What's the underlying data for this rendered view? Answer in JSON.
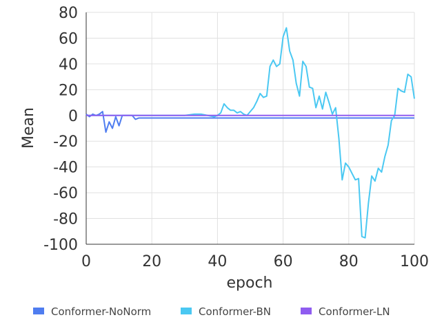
{
  "chart_data": {
    "type": "line",
    "title": "",
    "xlabel": "epoch",
    "ylabel": "Mean",
    "xlim": [
      0,
      100
    ],
    "ylim": [
      -100,
      80
    ],
    "xticks": [
      0,
      20,
      40,
      60,
      80,
      100
    ],
    "yticks": [
      80,
      60,
      40,
      20,
      0,
      -20,
      -40,
      -60,
      -80,
      -100
    ],
    "grid": true,
    "legend_position": "bottom",
    "series": [
      {
        "name": "Conformer-NoNorm",
        "color": "#4f7df0",
        "x": [
          0,
          1,
          2,
          3,
          4,
          5,
          6,
          7,
          8,
          9,
          10,
          11,
          12,
          13,
          14,
          15,
          16,
          17,
          18,
          19,
          20,
          30,
          40,
          50,
          60,
          70,
          80,
          90,
          100
        ],
        "y": [
          1,
          -1,
          1,
          0,
          1,
          3,
          -13,
          -5,
          -10,
          -1,
          -8,
          0,
          0,
          0,
          0,
          -3,
          -2,
          -2,
          -2,
          -2,
          -2,
          -2,
          -2,
          -2,
          -2,
          -2,
          -2,
          -2,
          -2
        ]
      },
      {
        "name": "Conformer-BN",
        "color": "#4ac8f2",
        "x": [
          0,
          5,
          10,
          15,
          20,
          25,
          30,
          33,
          35,
          37,
          39,
          40,
          41,
          42,
          43,
          44,
          45,
          46,
          47,
          48,
          49,
          50,
          51,
          52,
          53,
          54,
          55,
          56,
          57,
          58,
          59,
          60,
          61,
          62,
          63,
          64,
          65,
          66,
          67,
          68,
          69,
          70,
          71,
          72,
          73,
          74,
          75,
          76,
          77,
          78,
          79,
          80,
          81,
          82,
          83,
          84,
          85,
          86,
          87,
          88,
          89,
          90,
          91,
          92,
          93,
          94,
          95,
          96,
          97,
          98,
          99,
          100
        ],
        "y": [
          0,
          0,
          0,
          0,
          0,
          0,
          0,
          1,
          1,
          0,
          -1,
          0,
          2,
          9,
          6,
          4,
          4,
          2,
          3,
          1,
          0,
          3,
          6,
          11,
          17,
          14,
          15,
          38,
          43,
          38,
          40,
          61,
          68,
          50,
          43,
          25,
          15,
          42,
          38,
          22,
          21,
          6,
          15,
          5,
          18,
          10,
          1,
          6,
          -18,
          -50,
          -37,
          -40,
          -45,
          -50,
          -49,
          -94,
          -95,
          -68,
          -47,
          -51,
          -41,
          -44,
          -32,
          -23,
          -4,
          0,
          21,
          19,
          18,
          32,
          30,
          13
        ]
      },
      {
        "name": "Conformer-LN",
        "color": "#8f5cf0",
        "x": [
          0,
          10,
          20,
          30,
          40,
          50,
          60,
          70,
          80,
          90,
          100
        ],
        "y": [
          0,
          0,
          0,
          0,
          0,
          0,
          0,
          0,
          0,
          0,
          0
        ]
      }
    ]
  }
}
